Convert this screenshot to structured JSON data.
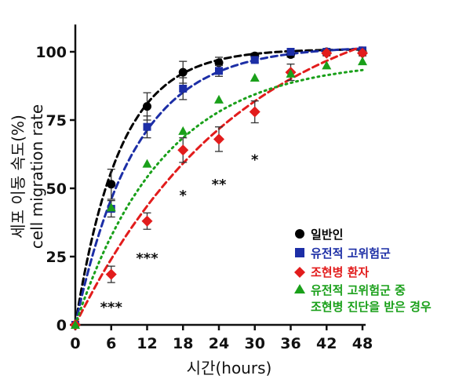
{
  "chart_data": {
    "type": "line",
    "title": "",
    "xlabel": "시간(hours)",
    "ylabel_line1": "세포 이동 속도(%)",
    "ylabel_line2": "cell migration rate",
    "xlim": [
      0,
      48
    ],
    "ylim": [
      0,
      110
    ],
    "x_ticks": [
      "0",
      "6",
      "12",
      "18",
      "24",
      "30",
      "36",
      "42",
      "48"
    ],
    "y_ticks": [
      "0",
      "25",
      "50",
      "75",
      "100"
    ],
    "grid": false,
    "legend_position": "lower-right",
    "x": [
      0,
      6,
      12,
      18,
      24,
      30,
      36,
      42,
      48
    ],
    "series": [
      {
        "name": "일반인",
        "color": "#000000",
        "marker": "circle",
        "values": [
          0,
          51.5,
          80,
          92.5,
          96,
          98.5,
          99,
          100,
          100
        ],
        "errors": [
          0,
          5.5,
          5,
          4,
          2,
          1,
          1,
          1,
          1
        ],
        "fit_k": 0.135,
        "fit_max": 101
      },
      {
        "name": "유전적 고위험군",
        "color": "#1c2ea6",
        "marker": "square",
        "values": [
          0,
          42.5,
          72.5,
          86.5,
          93,
          97,
          100,
          100,
          100.5
        ],
        "errors": [
          0,
          3,
          4,
          4,
          2,
          1,
          1,
          0.8,
          0.8
        ],
        "fit_k": 0.1,
        "fit_max": 102
      },
      {
        "name": "조현병 환자",
        "color": "#e21c1c",
        "marker": "diamond",
        "values": [
          0,
          18.5,
          38,
          64,
          68,
          78,
          92.5,
          99.5,
          99.5
        ],
        "errors": [
          0,
          3,
          3,
          4.5,
          4.5,
          4,
          3,
          1,
          1
        ],
        "fit_k": 0.036,
        "fit_max": 124
      },
      {
        "name": "유전적 고위험군 중",
        "name_line2": "조현병 진단을 받은 경우",
        "color": "#1aa01a",
        "marker": "triangle",
        "values": [
          0,
          43,
          59,
          71,
          82.5,
          90.5,
          92,
          95,
          96.5
        ],
        "errors": [
          0,
          0,
          0,
          0,
          0,
          0,
          0,
          0,
          0
        ],
        "fit_k": 0.068,
        "fit_max": 97
      }
    ],
    "annotations": [
      {
        "x": 6,
        "y": 7,
        "text": "***"
      },
      {
        "x": 12,
        "y": 25,
        "text": "***"
      },
      {
        "x": 18,
        "y": 48,
        "text": "*"
      },
      {
        "x": 24,
        "y": 52,
        "text": "**"
      },
      {
        "x": 30,
        "y": 61,
        "text": "*"
      }
    ]
  }
}
